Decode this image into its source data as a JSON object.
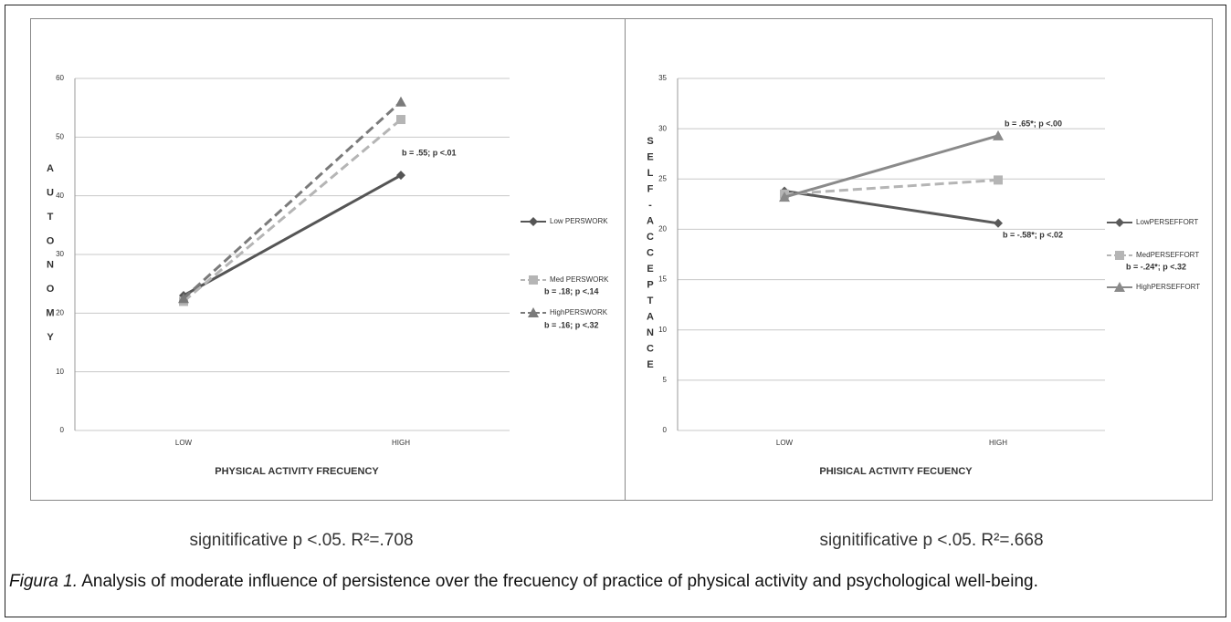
{
  "chart_data": [
    {
      "type": "line",
      "y_label": "AUTONOMY",
      "x_label": "PHYSICAL ACTIVITY FRECUENCY",
      "categories": [
        "LOW",
        "HIGH"
      ],
      "ylim": [
        0,
        60
      ],
      "yticks": [
        0,
        10,
        20,
        30,
        40,
        50,
        60
      ],
      "grid": true,
      "series": [
        {
          "name": "Low PERSWORK",
          "color": "#555555",
          "dash": false,
          "marker": "diamond",
          "values": [
            23,
            43.5
          ]
        },
        {
          "name": "Med PERSWORK",
          "color": "#b5b5b5",
          "dash": true,
          "marker": "square",
          "values": [
            22,
            53
          ]
        },
        {
          "name": "HighPERSWORK",
          "color": "#7a7a7a",
          "dash": true,
          "marker": "triangle",
          "values": [
            22.5,
            56
          ]
        }
      ],
      "annotations": [
        "b = .55; p <.01",
        "b = .18; p <.14",
        "b = .16; p <.32"
      ],
      "caption": "signitificative p <.05. R²=.708"
    },
    {
      "type": "line",
      "y_label": "SELF-ACCEPTANCE",
      "x_label": "PHISICAL ACTIVITY FECUENCY",
      "categories": [
        "LOW",
        "HIGH"
      ],
      "ylim": [
        0,
        35
      ],
      "yticks": [
        0,
        5,
        10,
        15,
        20,
        25,
        30,
        35
      ],
      "grid": true,
      "series": [
        {
          "name": "LowPERSEFFORT",
          "color": "#5a5a5a",
          "dash": false,
          "marker": "diamond",
          "values": [
            23.8,
            20.6
          ]
        },
        {
          "name": "MedPERSEFFORT",
          "color": "#b5b5b5",
          "dash": true,
          "marker": "square",
          "values": [
            23.5,
            24.9
          ]
        },
        {
          "name": "HighPERSEFFORT",
          "color": "#8a8a8a",
          "dash": false,
          "marker": "triangle",
          "values": [
            23.2,
            29.3
          ]
        }
      ],
      "annotations": [
        "b = .65*; p <.00",
        "b = -.58*; p <.02",
        "b = -.24*; p <.32"
      ],
      "caption": "signitificative p <.05. R²=.668"
    }
  ],
  "figure_label": "Figura 1.",
  "figure_text": "Analysis of moderate influence of persistence over the frecuency of practice of physical activity and psychological well-being."
}
